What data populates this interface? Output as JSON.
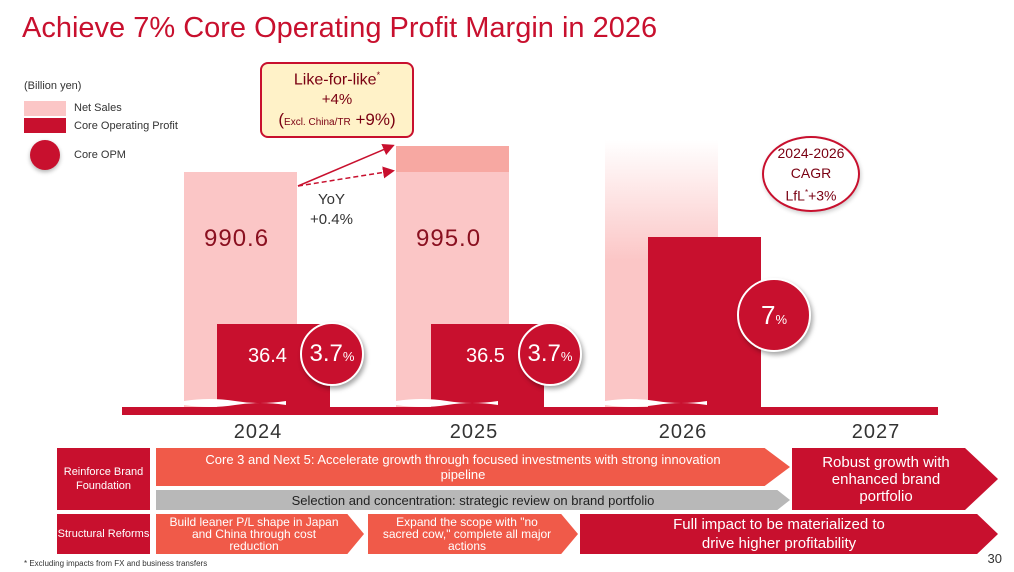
{
  "title": "Achieve 7% Core Operating Profit Margin in 2026",
  "unit": "(Billion yen)",
  "legend": {
    "net_sales": "Net Sales",
    "core_op": "Core Operating Profit",
    "core_opm": "Core OPM"
  },
  "callout": {
    "line1": "Like-for-like",
    "line1_mark": "*",
    "line2": "+4%",
    "open_paren": "(",
    "excl": "Excl. China/TR",
    "excl_value": " +9%",
    "close_paren": ")"
  },
  "yoy": {
    "label": "YoY",
    "value": "+0.4%"
  },
  "cagr": {
    "line1": "2024-2026",
    "line2": "CAGR",
    "line3a": "LfL",
    "line3_mark": "*",
    "line3b": "+3%"
  },
  "bars": [
    {
      "year": "2024",
      "net_sales": "990.6",
      "core_op": "36.4",
      "opm": "3.7",
      "opm_unit": "%"
    },
    {
      "year": "2025",
      "net_sales": "995.0",
      "core_op": "36.5",
      "opm": "3.7",
      "opm_unit": "%"
    },
    {
      "year": "2026",
      "opm": "7",
      "opm_unit": "%"
    },
    {
      "year": "2027"
    }
  ],
  "rows": {
    "reinforce_label": "Reinforce Brand Foundation",
    "reinforce_arrow": "Core 3 and Next 5: Accelerate growth through focused investments with strong innovation pipeline",
    "selection_arrow": "Selection and concentration: strategic review on brand portfolio",
    "robust_arrow": "Robust growth with enhanced brand portfolio",
    "structural_label": "Structural Reforms",
    "leaner_arrow": "Build leaner P/L shape in Japan and China through cost reduction",
    "expand_arrow": "Expand the scope with \"no sacred cow,\" complete all major actions",
    "full_impact_arrow": "Full impact to be materialized to drive higher profitability"
  },
  "colors": {
    "brand_red": "#c8102e",
    "light_pink": "#fbc6c6",
    "arrow_orange": "#f05a49",
    "arrow_gray": "#b8b8b8"
  },
  "footnote": "* Excluding impacts from FX and business transfers",
  "page_number": "30"
}
